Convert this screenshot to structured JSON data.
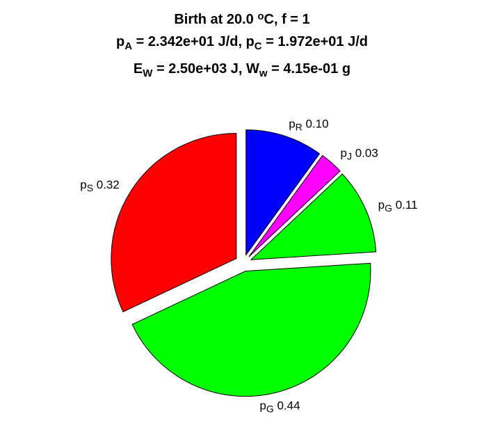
{
  "chart_data": {
    "type": "pie",
    "title_lines": [
      [
        {
          "text": "Birth at 20.0 "
        },
        {
          "text": "o",
          "shift": "sup"
        },
        {
          "text": "C, f = 1"
        }
      ],
      [
        {
          "text": "p"
        },
        {
          "text": "A",
          "shift": "sub"
        },
        {
          "text": " = 2.342e+01 J/d, p"
        },
        {
          "text": "C",
          "shift": "sub"
        },
        {
          "text": " = 1.972e+01 J/d"
        }
      ],
      [
        {
          "text": "E"
        },
        {
          "text": "W",
          "shift": "sub"
        },
        {
          "text": " = 2.50e+03 J, W"
        },
        {
          "text": "w",
          "shift": "sub"
        },
        {
          "text": " = 4.15e-01 g"
        }
      ]
    ],
    "slices": [
      {
        "name": "p",
        "sub": "R",
        "value": 0.1,
        "label": " 0.10",
        "color": "#0000ff"
      },
      {
        "name": "p",
        "sub": "J",
        "value": 0.03,
        "label": " 0.03",
        "color": "#ff00ff"
      },
      {
        "name": "p",
        "sub": "G",
        "value": 0.11,
        "label": " 0.11",
        "color": "#00ff00"
      },
      {
        "name": "p",
        "sub": "G",
        "value": 0.44,
        "label": " 0.44",
        "color": "#00ff00"
      },
      {
        "name": "p",
        "sub": "S",
        "value": 0.32,
        "label": " 0.32",
        "color": "#ff0000"
      }
    ],
    "start_angle": "top",
    "direction": "clockwise",
    "exploded": true
  }
}
